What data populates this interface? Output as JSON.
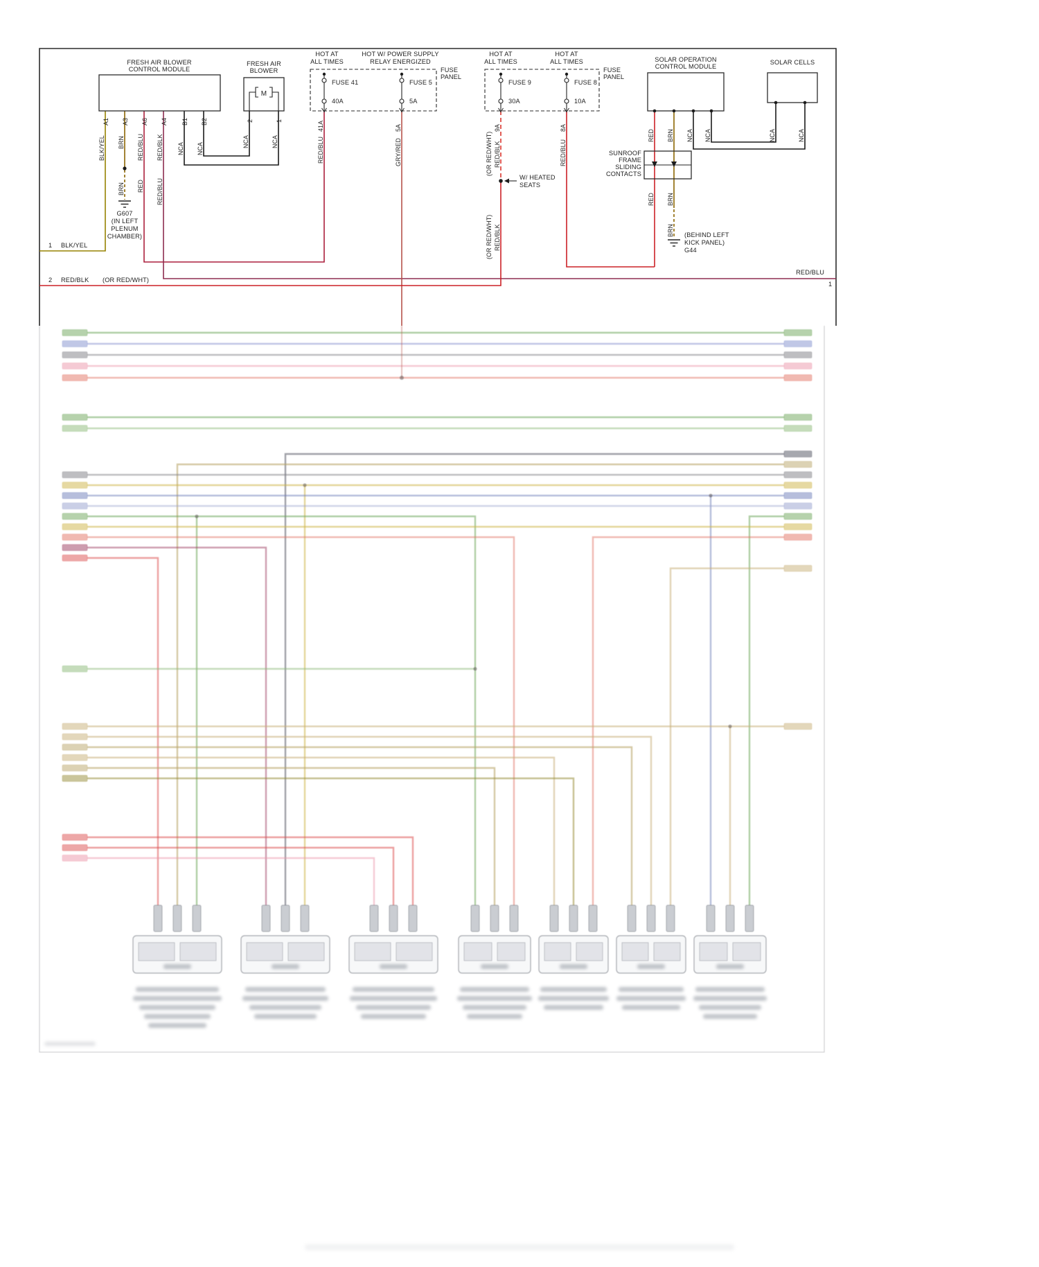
{
  "labels": {
    "module1_l1": "FRESH AIR BLOWER",
    "module1_l2": "CONTROL MODULE",
    "blower_l1": "FRESH AIR",
    "blower_l2": "BLOWER",
    "motor": "M",
    "hot_l1": "HOT AT",
    "hot_l2": "ALL TIMES",
    "hotps_l1": "HOT W/ POWER SUPPLY",
    "hotps_l2": "RELAY ENERGIZED",
    "fusepanel_l1": "FUSE",
    "fusepanel_l2": "PANEL",
    "fuse41": "FUSE 41",
    "fuse41_a": "40A",
    "fuse5": "FUSE 5",
    "fuse5_a": "5A",
    "fuse9": "FUSE 9",
    "fuse9_a": "30A",
    "fuse8": "FUSE 8",
    "fuse8_a": "10A",
    "solar_l1": "SOLAR OPERATION",
    "solar_l2": "CONTROL MODULE",
    "solar_cells": "SOLAR CELLS",
    "sun_l1": "SUNROOF",
    "sun_l2": "FRAME",
    "sun_l3": "SLIDING",
    "sun_l4": "CONTACTS",
    "pa1": "A1",
    "pa3": "A3",
    "pa6": "A6",
    "pa4": "A4",
    "pb1": "B1",
    "pb2": "B2",
    "p2": "2",
    "p1": "1",
    "p41a": "41A",
    "p5a": "5A",
    "p9a": "9A",
    "p8a": "8A",
    "blkyel": "BLK/YEL",
    "brn": "BRN",
    "redblu": "RED/BLU",
    "redblk": "RED/BLK",
    "nca": "NCA",
    "red": "RED",
    "gryred": "GRY/RED",
    "orredwht": "(OR RED/WHT)",
    "g607": "G607",
    "g607_l1": "(IN LEFT",
    "g607_l2": "PLENUM",
    "g607_l3": "CHAMBER)",
    "g44": "G44",
    "g44_l1": "(BEHIND LEFT",
    "g44_l2": "KICK PANEL)",
    "heated_l1": "W/ HEATED",
    "heated_l2": "SEATS",
    "n1": "1",
    "n2": "2"
  },
  "colors": {
    "blk_yel": "#968200",
    "brn": "#8a6400",
    "red": "#cb2026",
    "red_dash": "#d8342c",
    "red_blu": "#ab1f3c",
    "red_blk": "#8e2d50",
    "gry_red": "#b5524a",
    "wire_black": "#1a1a1a"
  }
}
